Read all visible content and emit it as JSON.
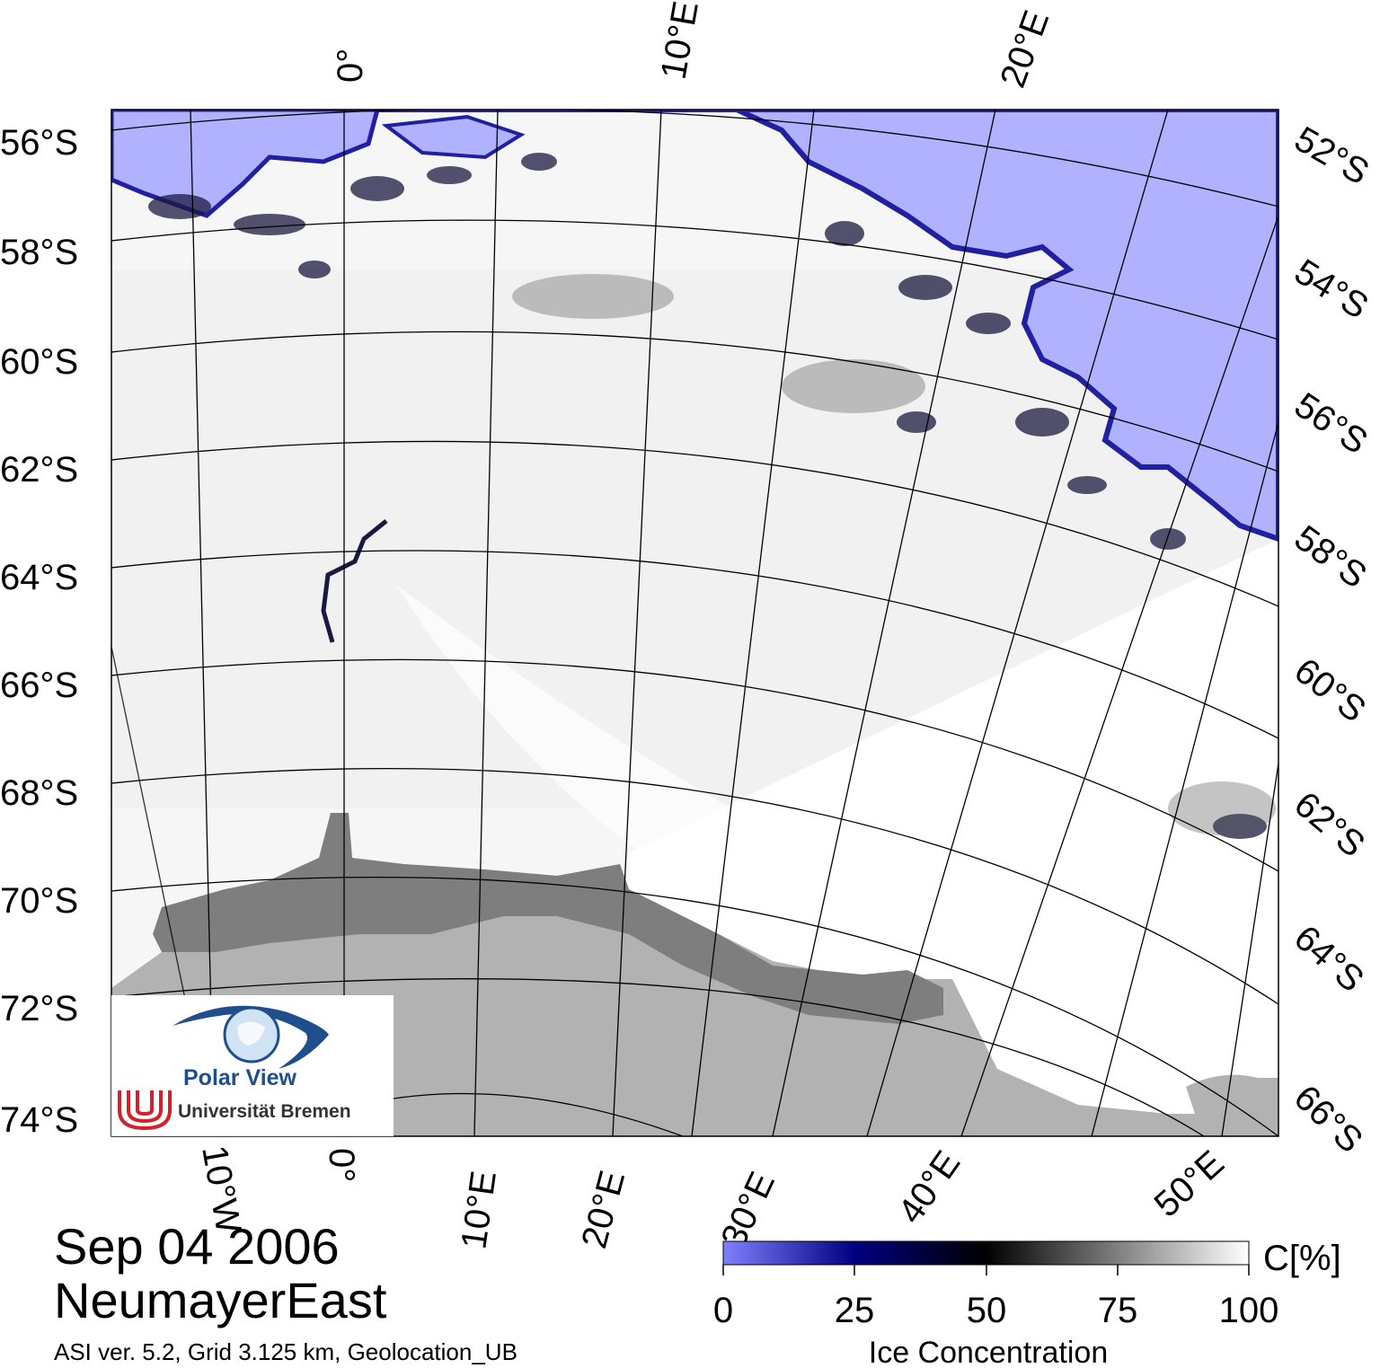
{
  "title": {
    "date": "Sep 04 2006",
    "region": "NeumayerEast",
    "subtitle": "ASI ver. 5.2,  Grid 3.125 km, Geolocation_UB"
  },
  "logo": {
    "name": "Polar View",
    "institution": "Universität Bremen",
    "icon": "eye-globe-icon",
    "institution_icon": "university-bremen-u-icon"
  },
  "map": {
    "latitude_labels_left": [
      "56°S",
      "58°S",
      "60°S",
      "62°S",
      "64°S",
      "66°S",
      "68°S",
      "70°S",
      "72°S",
      "74°S"
    ],
    "latitude_labels_right": [
      "52°S",
      "54°S",
      "56°S",
      "58°S",
      "60°S",
      "62°S",
      "64°S",
      "66°S"
    ],
    "longitude_labels_top": [
      "0°",
      "10°E",
      "20°E"
    ],
    "longitude_labels_bottom": [
      "10°W",
      "0°",
      "10°E",
      "20°E",
      "30°E",
      "40°E",
      "50°E"
    ],
    "colors": {
      "open_water": "#b0b2ff",
      "ice_edge": "#2020a0",
      "sea_ice_full": "#ffffff",
      "ice_shelf": "#7e7e7e",
      "land": "#b2b2b2",
      "graticule": "#000000"
    }
  },
  "colorbar": {
    "title": "Ice Concentration",
    "unit": "C[%]",
    "ticks": [
      "0",
      "25",
      "50",
      "75",
      "100"
    ],
    "stops": [
      "#8080ff",
      "#000080",
      "#000000",
      "#ffffff"
    ]
  }
}
